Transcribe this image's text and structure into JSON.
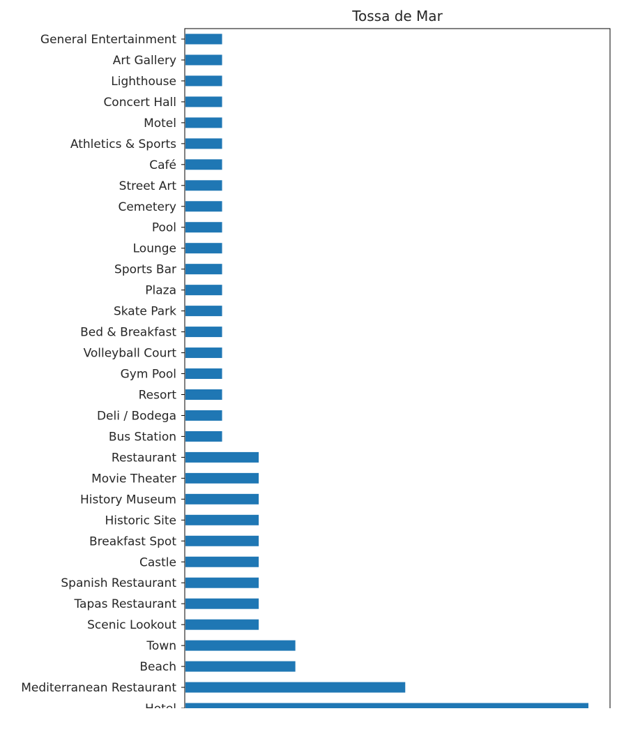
{
  "chart_data": {
    "type": "bar",
    "orientation": "horizontal",
    "title": "Tossa de Mar",
    "xlabel": "",
    "ylabel": "",
    "bar_color": "#1f77b4",
    "xlim": [
      0,
      11
    ],
    "grid": false,
    "legend": "none",
    "categories": [
      "General Entertainment",
      "Art Gallery",
      "Lighthouse",
      "Concert Hall",
      "Motel",
      "Athletics & Sports",
      "Café",
      "Street Art",
      "Cemetery",
      "Pool",
      "Lounge",
      "Sports Bar",
      "Plaza",
      "Skate Park",
      "Bed & Breakfast",
      "Volleyball Court",
      "Gym Pool",
      "Resort",
      "Deli / Bodega",
      "Bus Station",
      "Restaurant",
      "Movie Theater",
      "History Museum",
      "Historic Site",
      "Breakfast Spot",
      "Castle",
      "Spanish Restaurant",
      "Tapas Restaurant",
      "Scenic Lookout",
      "Town",
      "Beach",
      "Mediterranean Restaurant",
      "Hotel"
    ],
    "values": [
      1,
      1,
      1,
      1,
      1,
      1,
      1,
      1,
      1,
      1,
      1,
      1,
      1,
      1,
      1,
      1,
      1,
      1,
      1,
      1,
      2,
      2,
      2,
      2,
      2,
      2,
      2,
      2,
      2,
      3,
      3,
      6,
      11
    ]
  }
}
